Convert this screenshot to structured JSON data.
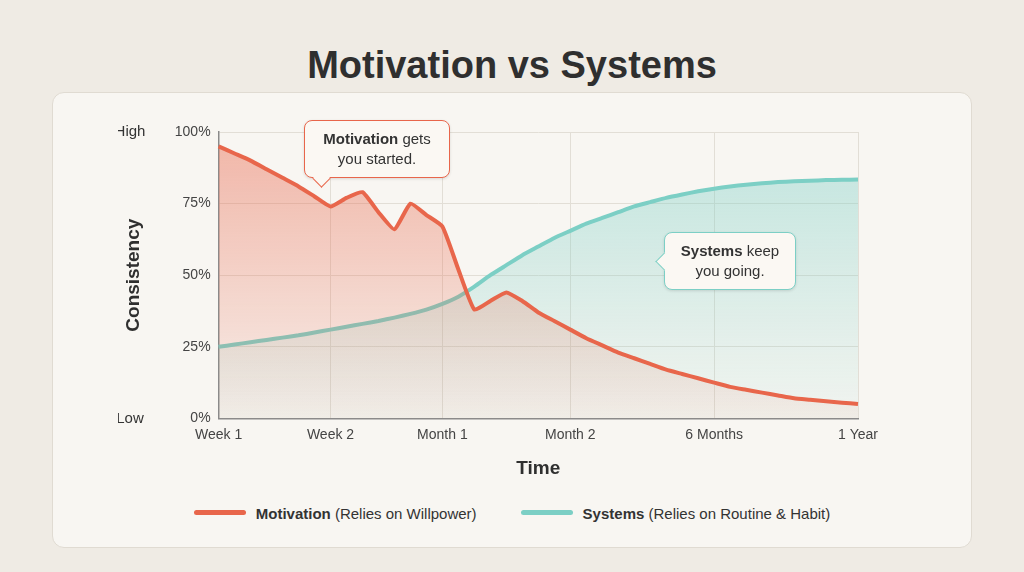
{
  "chart_data": {
    "type": "line",
    "title": "Motivation vs Systems",
    "x_label": "Time",
    "y_label": "Consistency",
    "y_end_labels": {
      "high": "High",
      "low": "Low"
    },
    "categories": [
      "Week 1",
      null,
      null,
      null,
      null,
      null,
      null,
      "Week 2",
      null,
      null,
      null,
      null,
      null,
      null,
      "Month 1",
      null,
      null,
      null,
      null,
      null,
      null,
      null,
      "Month 2",
      null,
      null,
      null,
      null,
      null,
      null,
      null,
      null,
      "6 Months",
      null,
      null,
      null,
      null,
      null,
      null,
      null,
      null,
      "1 Year"
    ],
    "series": [
      {
        "name": "Motivation (Relies on Willpower)",
        "color": "#e8664b",
        "values": [
          95,
          92.5,
          90,
          87,
          84,
          81,
          77.5,
          74,
          77,
          79,
          72,
          66,
          75,
          71,
          67,
          52,
          38,
          41,
          44,
          41,
          37,
          34,
          31,
          28,
          25.5,
          23,
          21,
          19,
          17,
          15.5,
          14,
          12.5,
          11,
          10,
          9,
          8,
          7,
          6.5,
          6,
          5.5,
          5
        ]
      },
      {
        "name": "Systems (Relies on Routine & Habit)",
        "color": "#7ccfc5",
        "values": [
          25,
          25.8,
          26.6,
          27.4,
          28.2,
          29,
          30,
          31,
          32,
          33,
          34,
          35.2,
          36.5,
          38,
          40,
          42.5,
          46,
          50,
          53.5,
          57,
          60,
          63,
          65.5,
          68,
          70,
          72,
          74,
          75.5,
          77,
          78.2,
          79.3,
          80.2,
          81,
          81.6,
          82.1,
          82.5,
          82.8,
          83,
          83.2,
          83.3,
          83.4
        ]
      }
    ],
    "ylim": [
      0,
      100
    ],
    "yticks": [
      {
        "value": 0,
        "label": "0%"
      },
      {
        "value": 25,
        "label": "25%"
      },
      {
        "value": 50,
        "label": "50%"
      },
      {
        "value": 75,
        "label": "75%"
      },
      {
        "value": 100,
        "label": "100%"
      }
    ],
    "grid": true,
    "legend": "bottom",
    "annotations": [
      {
        "text": "Motivation gets you started.",
        "series": "Motivation (Relies on Willpower)"
      },
      {
        "text": "Systems keep you going.",
        "series": "Systems (Relies on Routine & Habit)"
      }
    ]
  }
}
